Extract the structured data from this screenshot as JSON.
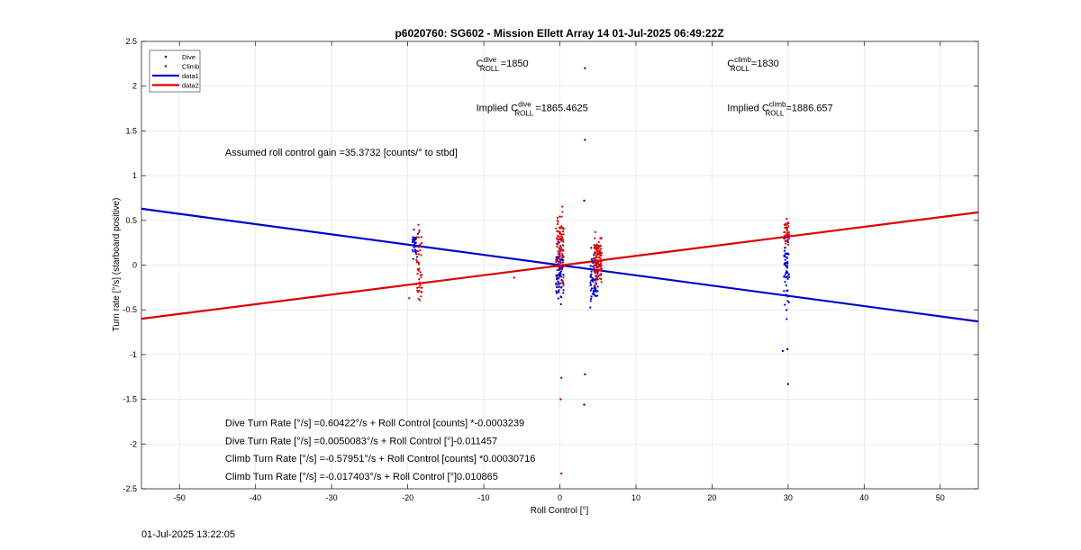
{
  "chart_data": {
    "type": "scatter",
    "title": "p6020760: SG602 - Mission Ellett Array 14 01-Jul-2025 06:49:22Z",
    "xlabel": "Roll Control [°]",
    "ylabel": "Turn rate [°/s] (starboard positive)",
    "xlim": [
      -55,
      55
    ],
    "ylim": [
      -2.5,
      2.5
    ],
    "xticks": [
      -50,
      -40,
      -30,
      -20,
      -10,
      0,
      10,
      20,
      30,
      40,
      50
    ],
    "yticks": [
      -2.5,
      -2,
      -1.5,
      -1,
      -0.5,
      0,
      0.5,
      1,
      1.5,
      2,
      2.5
    ],
    "grid": true,
    "legend_location": "top-left",
    "colors": {
      "dive": "#0000cc",
      "climb": "#dd0000"
    },
    "legend": [
      {
        "label": "Dive",
        "kind": "marker",
        "series": "dive"
      },
      {
        "label": "Climb",
        "kind": "marker",
        "series": "climb"
      },
      {
        "label": "data1",
        "kind": "line",
        "series": "dive"
      },
      {
        "label": "data2",
        "kind": "line",
        "series": "climb"
      }
    ],
    "fit_lines": [
      {
        "name": "data1",
        "color": "#0000cc",
        "x": [
          -55,
          55
        ],
        "y": [
          0.63,
          -0.63
        ]
      },
      {
        "name": "data2",
        "color": "#dd0000",
        "x": [
          -55,
          55
        ],
        "y": [
          -0.6,
          0.59
        ]
      }
    ],
    "scatter_clusters": [
      {
        "name": "Dive",
        "color": "#0000cc",
        "x_center": -19,
        "x_spread": 0.4,
        "y_min": 0.05,
        "y_max": 0.45,
        "count": 35
      },
      {
        "name": "Climb",
        "color": "#dd0000",
        "x_center": -18.5,
        "x_spread": 0.4,
        "y_min": -0.65,
        "y_max": 0.62,
        "count": 45
      },
      {
        "name": "Dive",
        "color": "#0000cc",
        "x_center": 0,
        "x_spread": 0.5,
        "y_min": -0.5,
        "y_max": 0.4,
        "count": 90
      },
      {
        "name": "Climb",
        "color": "#dd0000",
        "x_center": 0,
        "x_spread": 0.5,
        "y_min": -0.35,
        "y_max": 0.8,
        "count": 90
      },
      {
        "name": "Dive",
        "color": "#0000cc",
        "x_center": 4.5,
        "x_spread": 0.5,
        "y_min": -0.55,
        "y_max": 0.3,
        "count": 80
      },
      {
        "name": "Climb",
        "color": "#dd0000",
        "x_center": 5,
        "x_spread": 0.5,
        "y_min": -0.3,
        "y_max": 0.45,
        "count": 120
      },
      {
        "name": "Dive",
        "color": "#0000cc",
        "x_center": 29.8,
        "x_spread": 0.35,
        "y_min": -0.8,
        "y_max": 0.6,
        "count": 60
      },
      {
        "name": "Climb",
        "color": "#dd0000",
        "x_center": 29.8,
        "x_spread": 0.35,
        "y_min": 0.15,
        "y_max": 0.6,
        "count": 40
      }
    ],
    "outliers": [
      {
        "series": "Dive",
        "color": "#0000cc",
        "x": 3.3,
        "y": 2.2
      },
      {
        "series": "Dive",
        "color": "#0000cc",
        "x": 3.3,
        "y": 1.4
      },
      {
        "series": "Dive",
        "color": "#0000cc",
        "x": 3.2,
        "y": 0.72
      },
      {
        "series": "Dive",
        "color": "#0000cc",
        "x": 3.3,
        "y": -1.22
      },
      {
        "series": "Dive",
        "color": "#0000cc",
        "x": 3.2,
        "y": -1.56
      },
      {
        "series": "Climb",
        "color": "#dd0000",
        "x": 0.2,
        "y": -1.26
      },
      {
        "series": "Climb",
        "color": "#dd0000",
        "x": 0.1,
        "y": -1.5
      },
      {
        "series": "Climb",
        "color": "#dd0000",
        "x": 0.2,
        "y": -2.33
      },
      {
        "series": "Dive",
        "color": "#0000cc",
        "x": 29.3,
        "y": -0.96
      },
      {
        "series": "Dive",
        "color": "#0000cc",
        "x": 29.9,
        "y": -0.94
      },
      {
        "series": "Dive",
        "color": "#0000cc",
        "x": 30.0,
        "y": -1.33
      },
      {
        "series": "Climb",
        "color": "#dd0000",
        "x": -6,
        "y": -0.14
      },
      {
        "series": "Climb",
        "color": "#dd0000",
        "x": -19.8,
        "y": -0.37
      }
    ],
    "annotations": {
      "c_roll_dive": {
        "prefix": "C",
        "sup": "dive",
        "sub": "ROLL",
        "value": "=1850",
        "x": -11,
        "y": 2.22
      },
      "c_roll_climb": {
        "prefix": "C",
        "sup": "climb",
        "sub": "ROLL",
        "value": "=1830",
        "x": 22,
        "y": 2.22
      },
      "implied_dive": {
        "lead": "Implied ",
        "prefix": "C",
        "sup": "dive",
        "sub": "ROLL",
        "value": "=1865.4625",
        "x": -11,
        "y": 1.72
      },
      "implied_climb": {
        "lead": "Implied ",
        "prefix": "C",
        "sup": "climb",
        "sub": "ROLL",
        "value": "=1886.657",
        "x": 22,
        "y": 1.72
      },
      "gain": {
        "text": "Assumed roll control gain =35.3732 [counts/° to stbd]",
        "x": -44,
        "y": 1.22
      },
      "eq_lines": [
        {
          "text": "Dive Turn Rate [°/s] =0.60422°/s + Roll Control [counts] *-0.0003239",
          "x": -44,
          "y": -1.8
        },
        {
          "text": "Dive Turn Rate [°/s] =0.0050083°/s + Roll Control [°]-0.011457",
          "x": -44,
          "y": -2.0
        },
        {
          "text": "Climb Turn Rate [°/s] =-0.57951°/s + Roll Control [counts] *0.00030716",
          "x": -44,
          "y": -2.2
        },
        {
          "text": "Climb Turn Rate [°/s] =-0.017403°/s + Roll Control [°]0.010865",
          "x": -44,
          "y": -2.4
        }
      ]
    }
  },
  "footer_timestamp": "01-Jul-2025 13:22:05"
}
